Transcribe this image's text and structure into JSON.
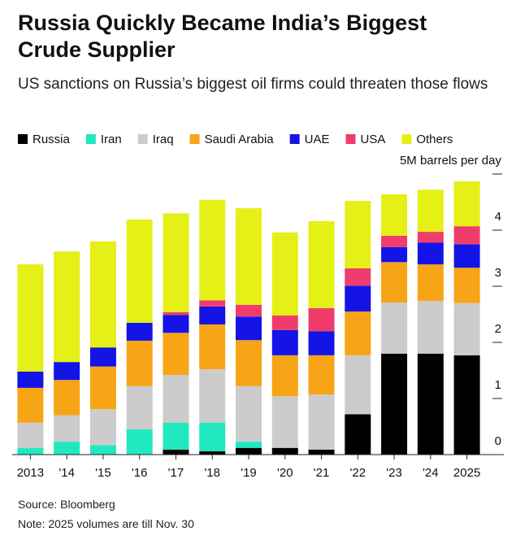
{
  "chart_data": {
    "type": "stacked_bar",
    "title": "Russia Quickly Became India’s Biggest Crude Supplier",
    "subtitle": "US sanctions on Russia’s biggest oil firms could threaten those flows",
    "source": "Source: Bloomberg",
    "note": "Note: 2025 volumes are till Nov. 30",
    "categories": [
      "2013",
      "'14",
      "'15",
      "'16",
      "'17",
      "'18",
      "'19",
      "'20",
      "'21",
      "'22",
      "'23",
      "'24",
      "2025"
    ],
    "series": [
      {
        "name": "Russia",
        "color": "#000000",
        "values": [
          0,
          0,
          0,
          0,
          0.09,
          0.06,
          0.12,
          0.12,
          0.09,
          0.72,
          1.8,
          1.8,
          1.77
        ]
      },
      {
        "name": "Iran",
        "color": "#22e8c0",
        "values": [
          0.12,
          0.23,
          0.17,
          0.45,
          0.48,
          0.51,
          0.11,
          0,
          0,
          0,
          0,
          0,
          0
        ]
      },
      {
        "name": "Iraq",
        "color": "#cccccc",
        "values": [
          0.45,
          0.47,
          0.64,
          0.77,
          0.85,
          0.95,
          0.99,
          0.92,
          0.98,
          1.05,
          0.91,
          0.94,
          0.93
        ]
      },
      {
        "name": "Saudi Arabia",
        "color": "#f7a416",
        "values": [
          0.62,
          0.63,
          0.76,
          0.81,
          0.75,
          0.8,
          0.82,
          0.73,
          0.7,
          0.78,
          0.72,
          0.65,
          0.63
        ]
      },
      {
        "name": "UAE",
        "color": "#1414e6",
        "values": [
          0.29,
          0.32,
          0.34,
          0.32,
          0.32,
          0.32,
          0.42,
          0.45,
          0.43,
          0.46,
          0.27,
          0.39,
          0.42
        ]
      },
      {
        "name": "USA",
        "color": "#f03c6c",
        "values": [
          0,
          0,
          0,
          0,
          0.05,
          0.11,
          0.21,
          0.26,
          0.41,
          0.31,
          0.2,
          0.19,
          0.32
        ]
      },
      {
        "name": "Others",
        "color": "#e4f016",
        "values": [
          1.91,
          1.97,
          1.89,
          1.84,
          1.76,
          1.79,
          1.72,
          1.48,
          1.55,
          1.2,
          0.74,
          0.75,
          0.8
        ]
      }
    ],
    "ylim": [
      0,
      5
    ],
    "yticks": [
      0,
      1,
      2,
      3,
      4,
      {
        "value": 5,
        "label": "5M barrels per day"
      }
    ]
  }
}
